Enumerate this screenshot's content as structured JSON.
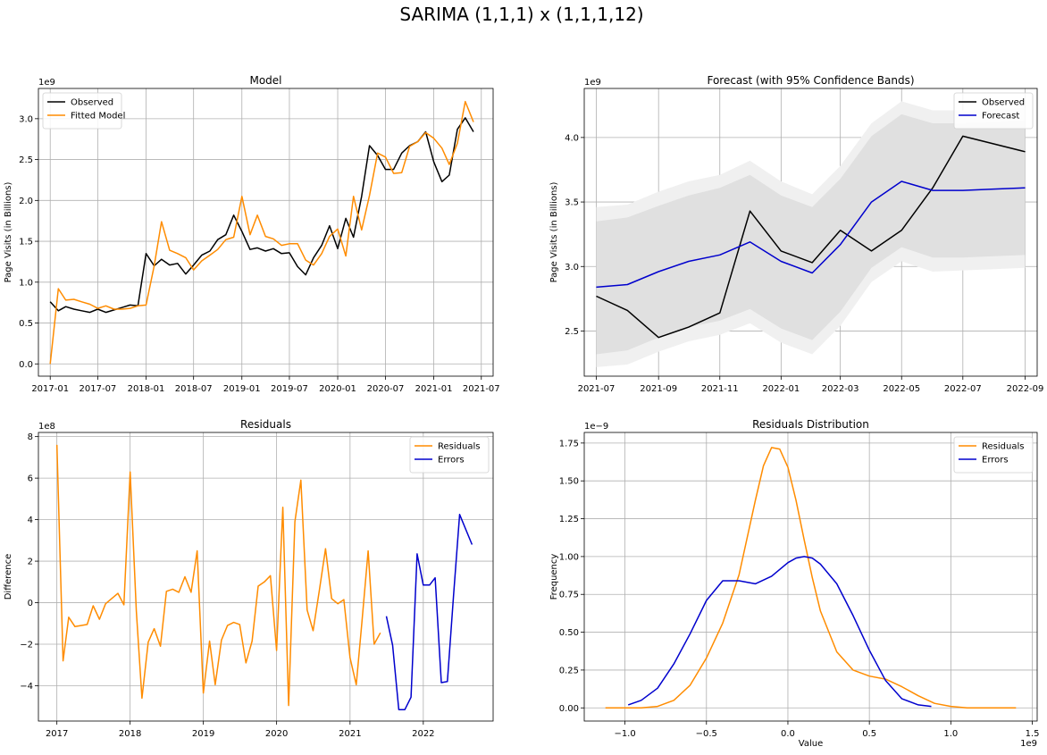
{
  "figure": {
    "suptitle": "SARIMA (1,1,1) x (1,1,1,12)"
  },
  "chart_data": [
    {
      "id": "model",
      "type": "line",
      "title": "Model",
      "xlabel": "",
      "ylabel": "Page Visits (in Billions)",
      "y_offset_label": "1e9",
      "grid": true,
      "legend": "upper left",
      "x_axis": "date",
      "xlim": [
        "2016-11-17",
        "2021-08-15"
      ],
      "ylim": [
        -0.15,
        3.37
      ],
      "xticks": [
        "2017-01-01",
        "2017-07-01",
        "2018-01-01",
        "2018-07-01",
        "2019-01-01",
        "2019-07-01",
        "2020-01-01",
        "2020-07-01",
        "2021-01-01",
        "2021-07-01"
      ],
      "xtick_labels": [
        "2017-01",
        "2017-07",
        "2018-01",
        "2018-07",
        "2019-01",
        "2019-07",
        "2020-01",
        "2020-07",
        "2021-01",
        "2021-07"
      ],
      "yticks": [
        0.0,
        0.5,
        1.0,
        1.5,
        2.0,
        2.5,
        3.0
      ],
      "ytick_labels": [
        "0.0",
        "0.5",
        "1.0",
        "1.5",
        "2.0",
        "2.5",
        "3.0"
      ],
      "x": [
        "2017-01-01",
        "2017-02-01",
        "2017-03-01",
        "2017-04-01",
        "2017-05-01",
        "2017-06-01",
        "2017-07-01",
        "2017-08-01",
        "2017-09-01",
        "2017-10-01",
        "2017-11-01",
        "2017-12-01",
        "2018-01-01",
        "2018-02-01",
        "2018-03-01",
        "2018-04-01",
        "2018-05-01",
        "2018-06-01",
        "2018-07-01",
        "2018-08-01",
        "2018-09-01",
        "2018-10-01",
        "2018-11-01",
        "2018-12-01",
        "2019-01-01",
        "2019-02-01",
        "2019-03-01",
        "2019-04-01",
        "2019-05-01",
        "2019-06-01",
        "2019-07-01",
        "2019-08-01",
        "2019-09-01",
        "2019-10-01",
        "2019-11-01",
        "2019-12-01",
        "2020-01-01",
        "2020-02-01",
        "2020-03-01",
        "2020-04-01",
        "2020-05-01",
        "2020-06-01",
        "2020-07-01",
        "2020-08-01",
        "2020-09-01",
        "2020-10-01",
        "2020-11-01",
        "2020-12-01",
        "2021-01-01",
        "2021-02-01",
        "2021-03-01",
        "2021-04-01",
        "2021-05-01",
        "2021-06-01"
      ],
      "series": [
        {
          "name": "Observed",
          "color": "#000000",
          "values": [
            0.76,
            0.65,
            0.7,
            0.67,
            0.65,
            0.63,
            0.67,
            0.63,
            0.66,
            0.69,
            0.72,
            0.71,
            1.35,
            1.2,
            1.28,
            1.21,
            1.23,
            1.1,
            1.21,
            1.33,
            1.38,
            1.52,
            1.58,
            1.82,
            1.62,
            1.4,
            1.42,
            1.38,
            1.41,
            1.35,
            1.36,
            1.19,
            1.09,
            1.3,
            1.45,
            1.69,
            1.41,
            1.78,
            1.55,
            2.05,
            2.67,
            2.55,
            2.38,
            2.38,
            2.58,
            2.67,
            2.72,
            2.84,
            2.47,
            2.23,
            2.31,
            2.87,
            3.01,
            2.84
          ]
        },
        {
          "name": "Fitted Model",
          "color": "#ff8c00",
          "values": [
            0.0,
            0.92,
            0.78,
            0.79,
            0.76,
            0.73,
            0.68,
            0.71,
            0.67,
            0.67,
            0.68,
            0.71,
            0.72,
            1.2,
            1.74,
            1.39,
            1.35,
            1.3,
            1.15,
            1.26,
            1.33,
            1.4,
            1.52,
            1.55,
            2.05,
            1.58,
            1.82,
            1.56,
            1.53,
            1.45,
            1.47,
            1.47,
            1.27,
            1.21,
            1.35,
            1.56,
            1.65,
            1.32,
            2.05,
            1.64,
            2.06,
            2.58,
            2.53,
            2.33,
            2.34,
            2.66,
            2.72,
            2.83,
            2.76,
            2.64,
            2.44,
            2.7,
            3.21,
            2.96
          ]
        }
      ]
    },
    {
      "id": "forecast",
      "type": "line",
      "title": "Forecast (with 95% Confidence Bands)",
      "xlabel": "",
      "ylabel": "Page Visits (in Billions)",
      "y_offset_label": "1e9",
      "grid": true,
      "legend": "upper right",
      "x_axis": "date",
      "xlim": [
        "2021-06-19",
        "2022-09-13"
      ],
      "ylim": [
        2.15,
        4.38
      ],
      "xticks": [
        "2021-07-01",
        "2021-09-01",
        "2021-11-01",
        "2022-01-01",
        "2022-03-01",
        "2022-05-01",
        "2022-07-01",
        "2022-09-01"
      ],
      "xtick_labels": [
        "2021-07",
        "2021-09",
        "2021-11",
        "2022-01",
        "2022-03",
        "2022-05",
        "2022-07",
        "2022-09"
      ],
      "yticks": [
        2.5,
        3.0,
        3.5,
        4.0
      ],
      "ytick_labels": [
        "2.5",
        "3.0",
        "3.5",
        "4.0"
      ],
      "x": [
        "2021-07-01",
        "2021-08-01",
        "2021-09-01",
        "2021-10-01",
        "2021-11-01",
        "2021-12-01",
        "2022-01-01",
        "2022-02-01",
        "2022-03-01",
        "2022-04-01",
        "2022-05-01",
        "2022-06-01",
        "2022-07-01",
        "2022-08-01",
        "2022-09-01"
      ],
      "series": [
        {
          "name": "Observed",
          "color": "#000000",
          "x": [
            "2021-07-01",
            "2021-08-01",
            "2021-09-01",
            "2021-10-01",
            "2021-11-01",
            "2021-12-01",
            "2022-01-01",
            "2022-02-01",
            "2022-03-01",
            "2022-04-01",
            "2022-05-01",
            "2022-06-01",
            "2022-07-01",
            "2022-09-01"
          ],
          "values": [
            2.77,
            2.66,
            2.45,
            2.53,
            2.64,
            3.43,
            3.12,
            3.03,
            3.28,
            3.12,
            3.28,
            3.61,
            4.01,
            3.89
          ]
        },
        {
          "name": "Forecast",
          "color": "#0000cd",
          "values": [
            2.84,
            2.86,
            2.96,
            3.04,
            3.09,
            3.19,
            3.04,
            2.95,
            3.17,
            3.5,
            3.66,
            3.59,
            3.59,
            3.6,
            3.61
          ]
        }
      ],
      "bands": [
        {
          "color": "#f0f0f0",
          "lower": [
            2.22,
            2.24,
            2.34,
            2.42,
            2.47,
            2.56,
            2.41,
            2.32,
            2.54,
            2.88,
            3.04,
            2.96,
            2.97,
            2.98,
            2.99
          ],
          "upper": [
            3.46,
            3.48,
            3.58,
            3.66,
            3.71,
            3.82,
            3.66,
            3.56,
            3.78,
            4.11,
            4.28,
            4.21,
            4.21,
            4.22,
            4.23
          ]
        },
        {
          "color": "#e0e0e0",
          "lower": [
            2.32,
            2.35,
            2.45,
            2.53,
            2.58,
            2.67,
            2.52,
            2.43,
            2.65,
            2.99,
            3.15,
            3.07,
            3.07,
            3.08,
            3.09
          ],
          "upper": [
            3.35,
            3.38,
            3.47,
            3.55,
            3.61,
            3.71,
            3.55,
            3.46,
            3.68,
            4.01,
            4.18,
            4.11,
            4.11,
            4.12,
            4.13
          ]
        }
      ]
    },
    {
      "id": "residuals",
      "type": "line",
      "title": "Residuals",
      "xlabel": "",
      "ylabel": "Difference",
      "y_offset_label": "1e8",
      "grid": true,
      "legend": "upper right",
      "x_axis": "date",
      "xlim": [
        "2016-10-01",
        "2022-12-15"
      ],
      "ylim": [
        -5.7,
        8.2
      ],
      "xticks": [
        "2017-01-01",
        "2018-01-01",
        "2019-01-01",
        "2020-01-01",
        "2021-01-01",
        "2022-01-01"
      ],
      "xtick_labels": [
        "2017",
        "2018",
        "2019",
        "2020",
        "2021",
        "2022"
      ],
      "yticks": [
        -4,
        -2,
        0,
        2,
        4,
        6,
        8
      ],
      "ytick_labels": [
        "−4",
        "−2",
        "0",
        "2",
        "4",
        "6",
        "8"
      ],
      "series": [
        {
          "name": "Residuals",
          "color": "#ff8c00",
          "x": [
            "2017-01-01",
            "2017-02-01",
            "2017-03-01",
            "2017-04-01",
            "2017-05-01",
            "2017-06-01",
            "2017-07-01",
            "2017-08-01",
            "2017-09-01",
            "2017-10-01",
            "2017-11-01",
            "2017-12-01",
            "2018-01-01",
            "2018-02-01",
            "2018-03-01",
            "2018-04-01",
            "2018-05-01",
            "2018-06-01",
            "2018-07-01",
            "2018-08-01",
            "2018-09-01",
            "2018-10-01",
            "2018-11-01",
            "2018-12-01",
            "2019-01-01",
            "2019-02-01",
            "2019-03-01",
            "2019-04-01",
            "2019-05-01",
            "2019-06-01",
            "2019-07-01",
            "2019-08-01",
            "2019-09-01",
            "2019-10-01",
            "2019-11-01",
            "2019-12-01",
            "2020-01-01",
            "2020-02-01",
            "2020-03-01",
            "2020-04-01",
            "2020-05-01",
            "2020-06-01",
            "2020-07-01",
            "2020-08-01",
            "2020-09-01",
            "2020-10-01",
            "2020-11-01",
            "2020-12-01",
            "2021-01-01",
            "2021-02-01",
            "2021-03-01",
            "2021-04-01",
            "2021-05-01",
            "2021-06-01"
          ],
          "values": [
            7.6,
            -2.8,
            -0.7,
            -1.15,
            -1.1,
            -1.05,
            -0.15,
            -0.8,
            -0.05,
            0.2,
            0.45,
            -0.1,
            6.3,
            -0.4,
            -4.6,
            -1.9,
            -1.25,
            -2.1,
            0.55,
            0.65,
            0.5,
            1.25,
            0.5,
            2.5,
            -4.35,
            -1.85,
            -3.95,
            -1.8,
            -1.1,
            -0.95,
            -1.05,
            -2.9,
            -1.85,
            0.8,
            1.0,
            1.3,
            -2.3,
            4.6,
            -4.95,
            3.9,
            5.9,
            -0.35,
            -1.35,
            0.6,
            2.6,
            0.2,
            -0.05,
            0.15,
            -2.65,
            -3.95,
            -0.95,
            2.5,
            -2.0,
            -1.45
          ]
        },
        {
          "name": "Errors",
          "color": "#0000cd",
          "x": [
            "2021-07-01",
            "2021-08-01",
            "2021-09-01",
            "2021-10-01",
            "2021-11-01",
            "2021-12-01",
            "2022-01-01",
            "2022-02-01",
            "2022-03-01",
            "2022-04-01",
            "2022-05-01",
            "2022-06-01",
            "2022-07-01",
            "2022-09-01"
          ],
          "values": [
            -0.65,
            -2.05,
            -5.15,
            -5.15,
            -4.55,
            2.35,
            0.85,
            0.85,
            1.2,
            -3.85,
            -3.8,
            0.35,
            4.25,
            2.8
          ]
        }
      ]
    },
    {
      "id": "distribution",
      "type": "line",
      "title": "Residuals Distribution",
      "xlabel": "Value",
      "ylabel": "Frequency",
      "x_offset_label": "1e9",
      "y_offset_label": "1e−9",
      "grid": true,
      "legend": "upper right",
      "x_axis": "number",
      "xlim": [
        -1.25,
        1.53
      ],
      "ylim": [
        -0.087,
        1.82
      ],
      "xticks": [
        -1.0,
        -0.5,
        0.0,
        0.5,
        1.0,
        1.5
      ],
      "xtick_labels": [
        "−1.0",
        "−0.5",
        "0.0",
        "0.5",
        "1.0",
        "1.5"
      ],
      "yticks": [
        0.0,
        0.25,
        0.5,
        0.75,
        1.0,
        1.25,
        1.5,
        1.75
      ],
      "ytick_labels": [
        "0.00",
        "0.25",
        "0.50",
        "0.75",
        "1.00",
        "1.25",
        "1.50",
        "1.75"
      ],
      "series": [
        {
          "name": "Residuals",
          "color": "#ff8c00",
          "x": [
            -1.12,
            -1.0,
            -0.9,
            -0.8,
            -0.7,
            -0.6,
            -0.5,
            -0.4,
            -0.3,
            -0.2,
            -0.15,
            -0.1,
            -0.05,
            0.0,
            0.05,
            0.1,
            0.15,
            0.2,
            0.3,
            0.4,
            0.5,
            0.6,
            0.7,
            0.8,
            0.9,
            1.0,
            1.1,
            1.2,
            1.4
          ],
          "values": [
            0.0,
            0.0,
            0.0,
            0.01,
            0.05,
            0.15,
            0.33,
            0.56,
            0.88,
            1.37,
            1.6,
            1.72,
            1.71,
            1.59,
            1.37,
            1.11,
            0.86,
            0.64,
            0.37,
            0.25,
            0.21,
            0.19,
            0.14,
            0.08,
            0.03,
            0.01,
            0.0,
            0.0,
            0.0
          ]
        },
        {
          "name": "Errors",
          "color": "#0000cd",
          "x": [
            -0.98,
            -0.9,
            -0.8,
            -0.7,
            -0.6,
            -0.5,
            -0.4,
            -0.3,
            -0.2,
            -0.1,
            0.0,
            0.05,
            0.1,
            0.15,
            0.2,
            0.3,
            0.4,
            0.5,
            0.6,
            0.7,
            0.8,
            0.88
          ],
          "values": [
            0.02,
            0.05,
            0.13,
            0.29,
            0.49,
            0.71,
            0.84,
            0.84,
            0.82,
            0.87,
            0.96,
            0.99,
            1.0,
            0.99,
            0.95,
            0.82,
            0.61,
            0.38,
            0.18,
            0.06,
            0.02,
            0.01
          ]
        }
      ]
    }
  ]
}
